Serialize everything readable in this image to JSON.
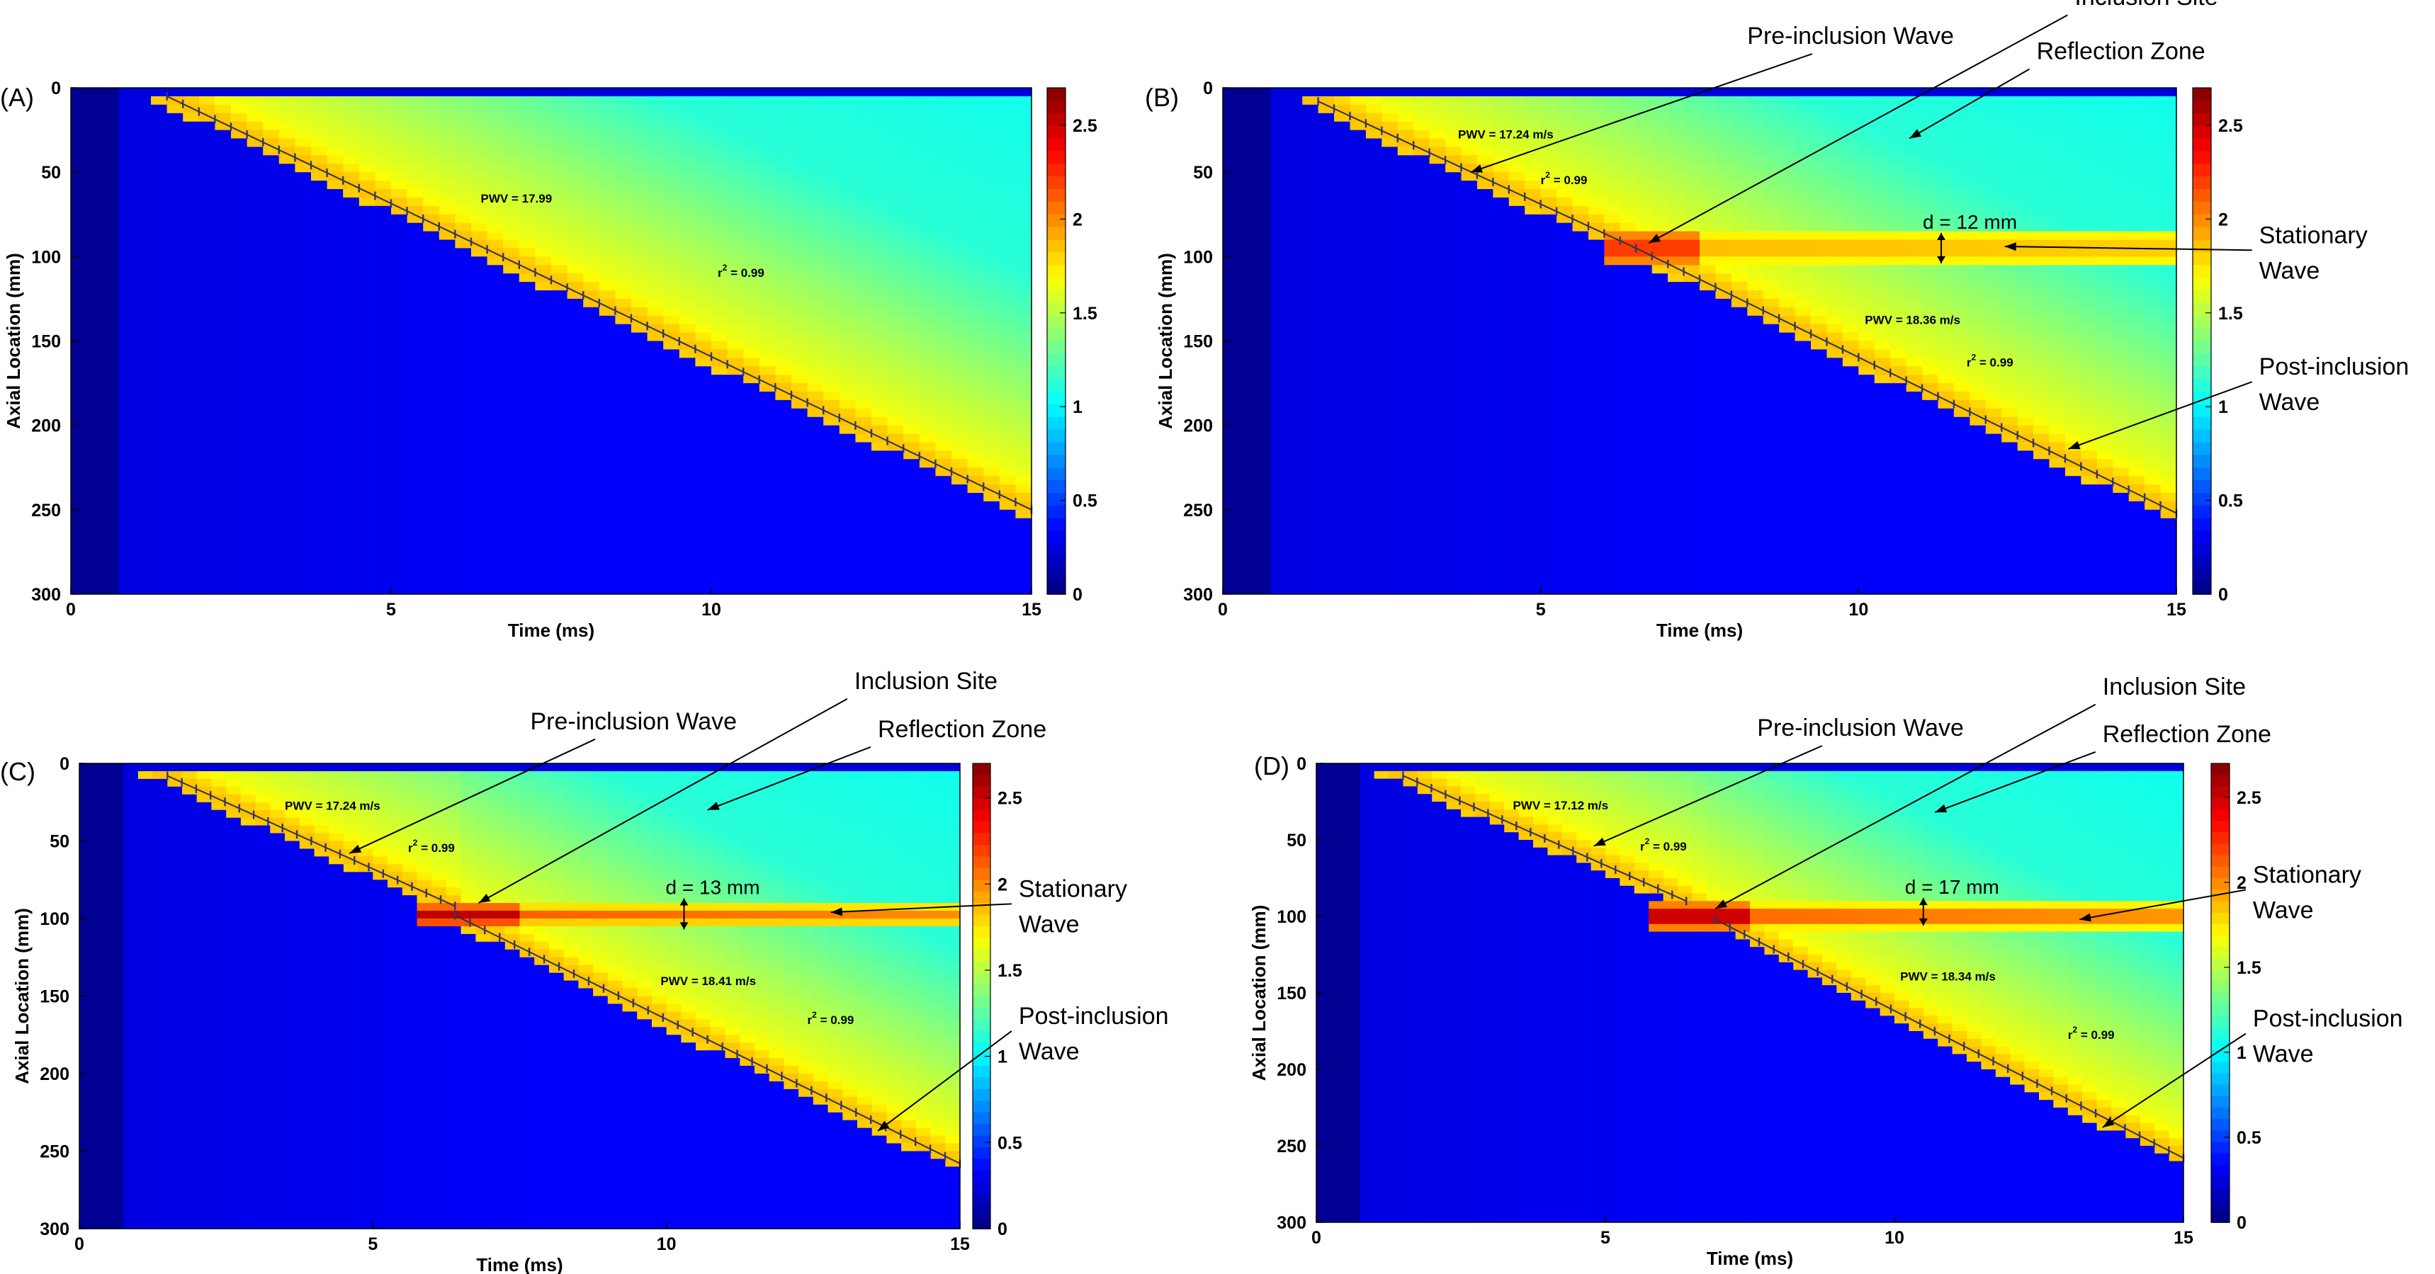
{
  "figure": {
    "colors": {
      "ramp": [
        "#00007f",
        "#0000ff",
        "#0080ff",
        "#00ffff",
        "#80ff80",
        "#ffff00",
        "#ff8000",
        "#ff0000",
        "#7f0000"
      ],
      "annotation": "#000000",
      "fit_line": "#333333",
      "markers": "#333380"
    }
  },
  "chart_data": [
    {
      "panel_label": "(A)",
      "type": "heatmap",
      "xlabel": "Time (ms)",
      "ylabel": "Axial Location (mm)",
      "xlim": [
        0,
        15
      ],
      "ylim": [
        300,
        0
      ],
      "xticks": [
        "0",
        "5",
        "10",
        "15"
      ],
      "yticks": [
        "0",
        "50",
        "100",
        "150",
        "200",
        "250",
        "300"
      ],
      "colorbar": {
        "ticks": [
          "0",
          "0.5",
          "1",
          "1.5",
          "2",
          "2.5"
        ],
        "range": [
          0,
          2.7
        ]
      },
      "wave_segments": [
        {
          "t_start": 1.5,
          "z_start": 5,
          "t_end": 15,
          "z_end": 250
        }
      ],
      "stationary_wave": null,
      "fit_labels": [
        {
          "text": "PWV = 17.99",
          "t": 6.4,
          "z": 68
        },
        {
          "prefix": "r",
          "sup": "2",
          "suffix": " = 0.99",
          "t": 10.1,
          "z": 112
        }
      ],
      "annotations": []
    },
    {
      "panel_label": "(B)",
      "type": "heatmap",
      "xlabel": "Time (ms)",
      "ylabel": "Axial Location (mm)",
      "xlim": [
        0,
        15
      ],
      "ylim": [
        300,
        0
      ],
      "xticks": [
        "0",
        "5",
        "10",
        "15"
      ],
      "yticks": [
        "0",
        "50",
        "100",
        "150",
        "200",
        "250",
        "300"
      ],
      "colorbar": {
        "ticks": [
          "0",
          "0.5",
          "1",
          "1.5",
          "2",
          "2.5"
        ],
        "range": [
          0,
          2.7
        ]
      },
      "wave_segments": [
        {
          "t_start": 1.5,
          "z_start": 8,
          "t_end": 6.5,
          "z_end": 95
        },
        {
          "t_start": 6.5,
          "z_start": 95,
          "t_end": 15,
          "z_end": 252
        }
      ],
      "stationary_wave": {
        "t_start": 6.0,
        "t_end": 15,
        "z": 95,
        "strength": 0.25
      },
      "fit_labels": [
        {
          "text": "PWV = 17.24 m/s",
          "t": 3.7,
          "z": 30
        },
        {
          "prefix": "r",
          "sup": "2",
          "suffix": " = 0.99",
          "t": 5.0,
          "z": 57
        },
        {
          "text": "PWV = 18.36 m/s",
          "t": 10.1,
          "z": 140
        },
        {
          "prefix": "r",
          "sup": "2",
          "suffix": " = 0.99",
          "t": 11.7,
          "z": 165
        }
      ],
      "measure": {
        "text": "d = 12 mm",
        "t": 11.3,
        "z1": 86,
        "z2": 104
      },
      "annotations": [
        {
          "lines": [
            "Pre-inclusion Wave"
          ],
          "tx": 11.5,
          "tz": -26,
          "ax": 3.9,
          "az": 50,
          "start": "end"
        },
        {
          "lines": [
            "Inclusion Site"
          ],
          "tx": 13.4,
          "tz": -49,
          "ax": 6.7,
          "az": 92,
          "start": "start"
        },
        {
          "lines": [
            "Reflection Zone"
          ],
          "tx": 12.8,
          "tz": -17,
          "ax": 10.8,
          "az": 30,
          "start": "start"
        },
        {
          "lines": [
            "Stationary",
            "Wave"
          ],
          "tx": 16.3,
          "tz": 92,
          "ax": 12.3,
          "az": 94,
          "start": "start"
        },
        {
          "lines": [
            "Post-inclusion",
            "Wave"
          ],
          "tx": 16.3,
          "tz": 170,
          "ax": 13.3,
          "az": 214,
          "start": "start"
        }
      ]
    },
    {
      "panel_label": "(C)",
      "type": "heatmap",
      "xlabel": "Time (ms)",
      "ylabel": "Axial Location (mm)",
      "xlim": [
        0,
        15
      ],
      "ylim": [
        300,
        0
      ],
      "xticks": [
        "0",
        "5",
        "10",
        "15"
      ],
      "yticks": [
        "0",
        "50",
        "100",
        "150",
        "200",
        "250",
        "300"
      ],
      "colorbar": {
        "ticks": [
          "0",
          "0.5",
          "1",
          "1.5",
          "2",
          "2.5"
        ],
        "range": [
          0,
          2.7
        ]
      },
      "wave_segments": [
        {
          "t_start": 1.5,
          "z_start": 8,
          "t_end": 6.4,
          "z_end": 92
        },
        {
          "t_start": 6.4,
          "z_start": 98,
          "t_end": 15,
          "z_end": 258
        }
      ],
      "stationary_wave": {
        "t_start": 5.8,
        "t_end": 15,
        "z": 98,
        "strength": 0.45
      },
      "fit_labels": [
        {
          "text": "PWV = 17.24 m/s",
          "t": 3.5,
          "z": 30
        },
        {
          "prefix": "r",
          "sup": "2",
          "suffix": " = 0.99",
          "t": 5.6,
          "z": 57
        },
        {
          "text": "PWV = 18.41 m/s",
          "t": 9.9,
          "z": 143
        },
        {
          "prefix": "r",
          "sup": "2",
          "suffix": " = 0.99",
          "t": 12.4,
          "z": 168
        }
      ],
      "measure": {
        "text": "d = 13 mm",
        "t": 10.3,
        "z1": 87,
        "z2": 107
      },
      "annotations": [
        {
          "lines": [
            "Pre-inclusion  Wave"
          ],
          "tx": 11.2,
          "tz": -22,
          "ax": 4.6,
          "az": 58,
          "start": "end"
        },
        {
          "lines": [
            "Inclusion Site"
          ],
          "tx": 13.2,
          "tz": -48,
          "ax": 6.8,
          "az": 90,
          "start": "start"
        },
        {
          "lines": [
            "Reflection Zone"
          ],
          "tx": 13.6,
          "tz": -17,
          "ax": 10.7,
          "az": 30,
          "start": "start"
        },
        {
          "lines": [
            "Stationary",
            "Wave"
          ],
          "tx": 16.0,
          "tz": 86,
          "ax": 12.8,
          "az": 96,
          "start": "start"
        },
        {
          "lines": [
            "Post-inclusion",
            "Wave"
          ],
          "tx": 16.0,
          "tz": 168,
          "ax": 13.6,
          "az": 237,
          "start": "start"
        }
      ]
    },
    {
      "panel_label": "(D)",
      "type": "heatmap",
      "xlabel": "Time (ms)",
      "ylabel": "Axial Location (mm)",
      "xlim": [
        0,
        15
      ],
      "ylim": [
        300,
        0
      ],
      "xticks": [
        "0",
        "5",
        "10",
        "15"
      ],
      "yticks": [
        "0",
        "50",
        "100",
        "150",
        "200",
        "250",
        "300"
      ],
      "colorbar": {
        "ticks": [
          "0",
          "0.5",
          "1",
          "1.5",
          "2",
          "2.5"
        ],
        "range": [
          0,
          2.7
        ]
      },
      "wave_segments": [
        {
          "t_start": 1.5,
          "z_start": 8,
          "t_end": 6.4,
          "z_end": 90
        },
        {
          "t_start": 6.9,
          "z_start": 102,
          "t_end": 15,
          "z_end": 258
        }
      ],
      "stationary_wave": {
        "t_start": 5.8,
        "t_end": 15,
        "z": 100,
        "strength": 0.6
      },
      "fit_labels": [
        {
          "text": "PWV = 17.12 m/s",
          "t": 3.4,
          "z": 30
        },
        {
          "prefix": "r",
          "sup": "2",
          "suffix": " = 0.99",
          "t": 5.6,
          "z": 57
        },
        {
          "text": "PWV = 18.34 m/s",
          "t": 10.1,
          "z": 142
        },
        {
          "prefix": "r",
          "sup": "2",
          "suffix": " = 0.99",
          "t": 13.0,
          "z": 180
        }
      ],
      "measure": {
        "text": "d = 17 mm",
        "t": 10.5,
        "z1": 88,
        "z2": 106
      },
      "annotations": [
        {
          "lines": [
            "Pre-inclusion  Wave"
          ],
          "tx": 11.2,
          "tz": -18,
          "ax": 4.8,
          "az": 54,
          "start": "end"
        },
        {
          "lines": [
            "Inclusion Site"
          ],
          "tx": 13.6,
          "tz": -45,
          "ax": 6.9,
          "az": 95,
          "start": "start"
        },
        {
          "lines": [
            "Reflection Zone"
          ],
          "tx": 13.6,
          "tz": -14,
          "ax": 10.7,
          "az": 32,
          "start": "start"
        },
        {
          "lines": [
            "Stationary",
            "Wave"
          ],
          "tx": 16.2,
          "tz": 78,
          "ax": 13.2,
          "az": 102,
          "start": "start"
        },
        {
          "lines": [
            "Post-inclusion",
            "Wave"
          ],
          "tx": 16.2,
          "tz": 172,
          "ax": 13.6,
          "az": 238,
          "start": "start"
        }
      ]
    }
  ]
}
